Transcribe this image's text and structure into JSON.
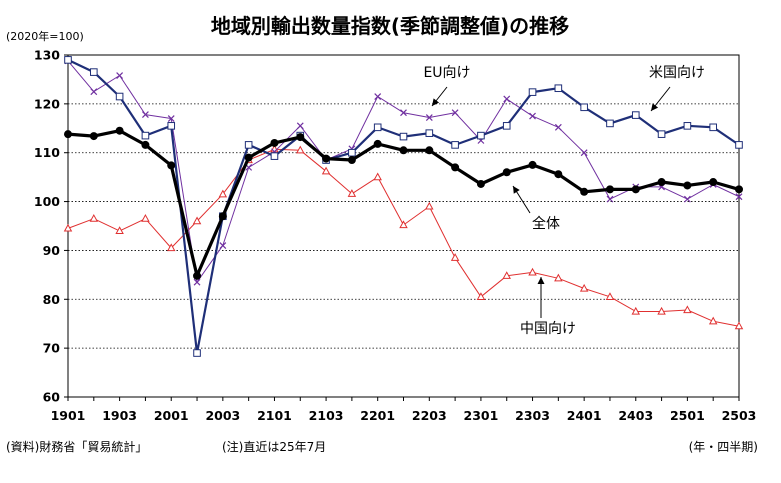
{
  "chart_data": {
    "type": "line",
    "title": "地域別輸出数量指数(季節調整値)の推移",
    "base_note": "(2020年=100)",
    "unit_note": "(年・四半期)",
    "footnotes": [
      "(資料)財務省「貿易統計」",
      "(注)直近は25年7月"
    ],
    "ylim": [
      60,
      130
    ],
    "yticks": [
      60,
      70,
      80,
      90,
      100,
      110,
      120,
      130
    ],
    "grid": true,
    "x": [
      "1901",
      "1902",
      "1903",
      "1904",
      "2001",
      "2002",
      "2003",
      "2004",
      "2101",
      "2102",
      "2103",
      "2104",
      "2201",
      "2202",
      "2203",
      "2204",
      "2301",
      "2302",
      "2303",
      "2304",
      "2401",
      "2402",
      "2403",
      "2404",
      "2501",
      "2502",
      "2503"
    ],
    "xtick_labels": [
      "1901",
      "1903",
      "2001",
      "2003",
      "2101",
      "2103",
      "2201",
      "2203",
      "2301",
      "2303",
      "2401",
      "2403",
      "2501",
      "2503"
    ],
    "series": [
      {
        "name": "全体",
        "color": "#000000",
        "marker": "circle",
        "values": [
          113.8,
          113.4,
          114.5,
          111.6,
          107.4,
          84.8,
          97.0,
          109.0,
          112.0,
          113.2,
          108.8,
          108.5,
          111.8,
          110.5,
          110.5,
          107.0,
          103.6,
          106.0,
          107.5,
          105.6,
          102.0,
          102.5,
          102.5,
          104.0,
          103.3,
          104.0,
          102.5
        ]
      },
      {
        "name": "米国向け",
        "color": "#1f2f78",
        "marker": "square",
        "values": [
          129.0,
          126.5,
          121.5,
          113.5,
          115.5,
          69.0,
          97.0,
          111.6,
          109.3,
          113.5,
          108.5,
          110.0,
          115.2,
          113.3,
          114.0,
          111.6,
          113.5,
          115.5,
          122.4,
          123.2,
          119.3,
          116.0,
          117.7,
          113.8,
          115.5,
          115.2,
          111.6
        ]
      },
      {
        "name": "EU向け",
        "color": "#7030a0",
        "marker": "x",
        "values": [
          128.8,
          122.5,
          125.8,
          117.8,
          117.0,
          83.5,
          91.0,
          107.0,
          110.2,
          115.5,
          108.5,
          110.8,
          121.5,
          118.2,
          117.2,
          118.2,
          112.5,
          121.0,
          117.5,
          115.2,
          110.0,
          100.5,
          103.0,
          103.0,
          100.5,
          103.5,
          101.0
        ]
      },
      {
        "name": "中国向け",
        "color": "#e03030",
        "marker": "triangle",
        "values": [
          94.5,
          96.5,
          94.0,
          96.5,
          90.5,
          96.0,
          101.5,
          108.5,
          110.7,
          110.5,
          106.2,
          101.6,
          105.0,
          95.2,
          99.0,
          88.5,
          80.5,
          84.8,
          85.5,
          84.3,
          82.2,
          80.5,
          77.5,
          77.5,
          77.8,
          75.5,
          74.5
        ]
      }
    ],
    "annotations": [
      {
        "series": "EU向け",
        "text": "EU向け"
      },
      {
        "series": "米国向け",
        "text": "米国向け"
      },
      {
        "series": "全体",
        "text": "全体"
      },
      {
        "series": "中国向け",
        "text": "中国向け"
      }
    ]
  }
}
